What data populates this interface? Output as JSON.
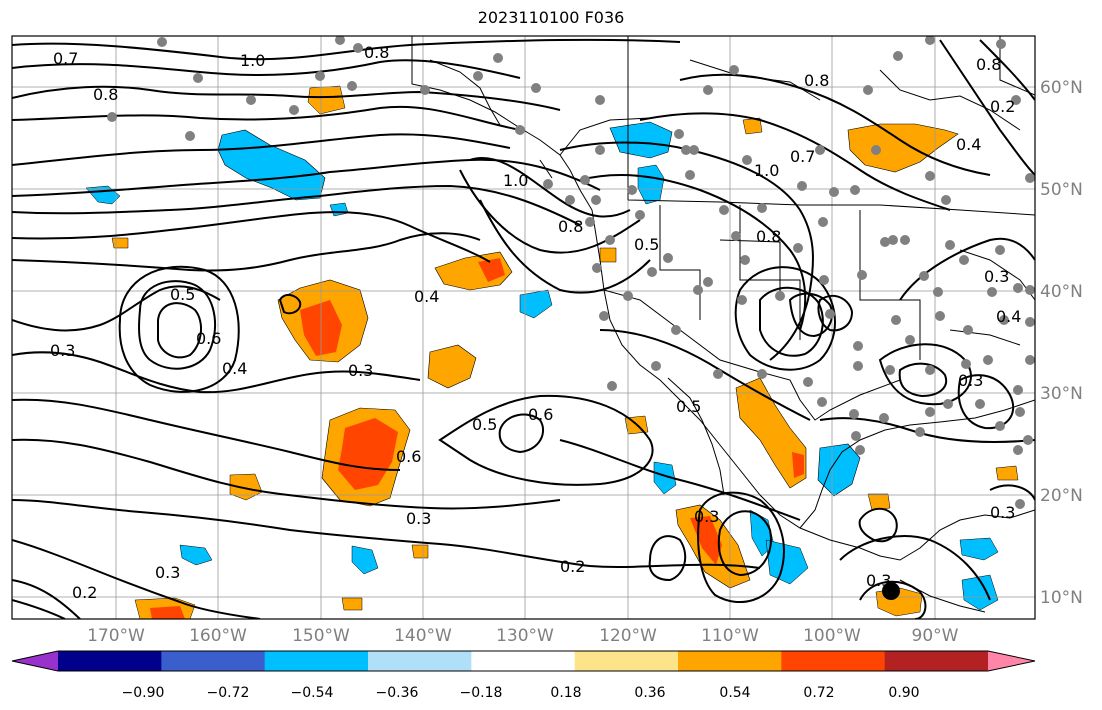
{
  "title": "2023110100 F036",
  "map": {
    "lat_labels": [
      "60°N",
      "50°N",
      "40°N",
      "30°N",
      "20°N",
      "10°N"
    ],
    "lon_labels": [
      "170°W",
      "160°W",
      "150°W",
      "140°W",
      "130°W",
      "120°W",
      "110°W",
      "100°W",
      "90°W"
    ],
    "contour_labels": [
      "0.7",
      "1.0",
      "0.8",
      "0.8",
      "0.5",
      "0.6",
      "0.3",
      "0.4",
      "0.3",
      "0.4",
      "1.0",
      "0.8",
      "0.5",
      "0.5",
      "0.6",
      "0.6",
      "0.3",
      "0.3",
      "0.2",
      "0.3",
      "0.2",
      "1.0",
      "0.7",
      "0.8",
      "0.8",
      "0.3",
      "0.4",
      "0.2",
      "0.3",
      "0.8",
      "0.3",
      "0.4",
      "0.3",
      "0.5"
    ]
  },
  "colorbar": {
    "ticks": [
      "−0.90",
      "−0.72",
      "−0.54",
      "−0.36",
      "−0.18",
      "0.18",
      "0.36",
      "0.54",
      "0.72",
      "0.90"
    ],
    "colors": [
      "#9932cc",
      "#00008b",
      "#3a5fcd",
      "#00bfff",
      "#b0e0f8",
      "#ffffff",
      "#fce48a",
      "#ffa500",
      "#ff4500",
      "#b22222",
      "#ff86a8"
    ]
  }
}
